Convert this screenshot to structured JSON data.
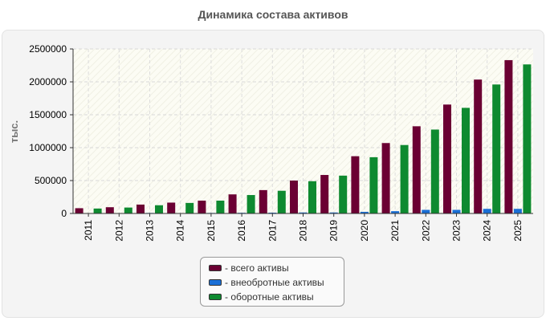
{
  "chart_data": {
    "type": "bar",
    "title": "Динамика состава активов",
    "ylabel": "тыс.",
    "xlabel": "",
    "ylim": [
      0,
      2500000
    ],
    "yticks": [
      0,
      500000,
      1000000,
      1500000,
      2000000,
      2500000
    ],
    "grid": true,
    "legend_position": "bottom",
    "categories": [
      "2011",
      "2012",
      "2013",
      "2014",
      "2015",
      "2016",
      "2017",
      "2018",
      "2019",
      "2020",
      "2021",
      "2022",
      "2023",
      "2024",
      "2025"
    ],
    "series": [
      {
        "name": "- всего активы",
        "color": "#6b0033",
        "values": [
          80000,
          95000,
          135000,
          165000,
          195000,
          290000,
          355000,
          500000,
          585000,
          870000,
          1070000,
          1325000,
          1655000,
          2035000,
          2330000
        ]
      },
      {
        "name": "- внеобротные активы",
        "color": "#1a6fd6",
        "values": [
          5000,
          5000,
          8000,
          6000,
          8000,
          10000,
          12000,
          15000,
          15000,
          25000,
          35000,
          55000,
          55000,
          70000,
          70000
        ]
      },
      {
        "name": "- оборотные активы",
        "color": "#0e8a30",
        "values": [
          75000,
          90000,
          125000,
          160000,
          195000,
          280000,
          345000,
          490000,
          575000,
          855000,
          1040000,
          1275000,
          1605000,
          1960000,
          2265000
        ]
      }
    ]
  }
}
